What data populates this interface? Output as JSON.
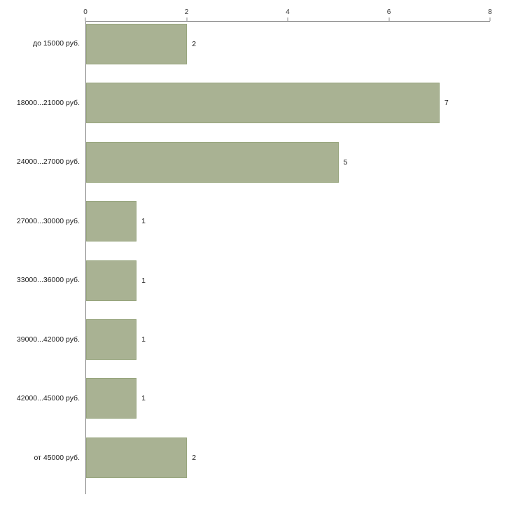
{
  "chart_data": {
    "type": "bar",
    "orientation": "horizontal",
    "title": "",
    "xlabel": "",
    "ylabel": "",
    "categories": [
      "до 15000 руб.",
      "18000...21000 руб.",
      "24000...27000 руб.",
      "27000...30000 руб.",
      "33000...36000 руб.",
      "39000...42000 руб.",
      "42000...45000 руб.",
      "от 45000 руб."
    ],
    "values": [
      2,
      7,
      5,
      1,
      1,
      1,
      1,
      2
    ],
    "x_ticks": [
      0,
      2,
      4,
      6,
      8
    ],
    "xlim": [
      0,
      8
    ],
    "grid": "off",
    "legend": "none",
    "bar_color": "#a9b293",
    "bar_border_color": "#97a57d",
    "axis_color": "#8a8a8a",
    "text_color": "#1a1a1a"
  }
}
